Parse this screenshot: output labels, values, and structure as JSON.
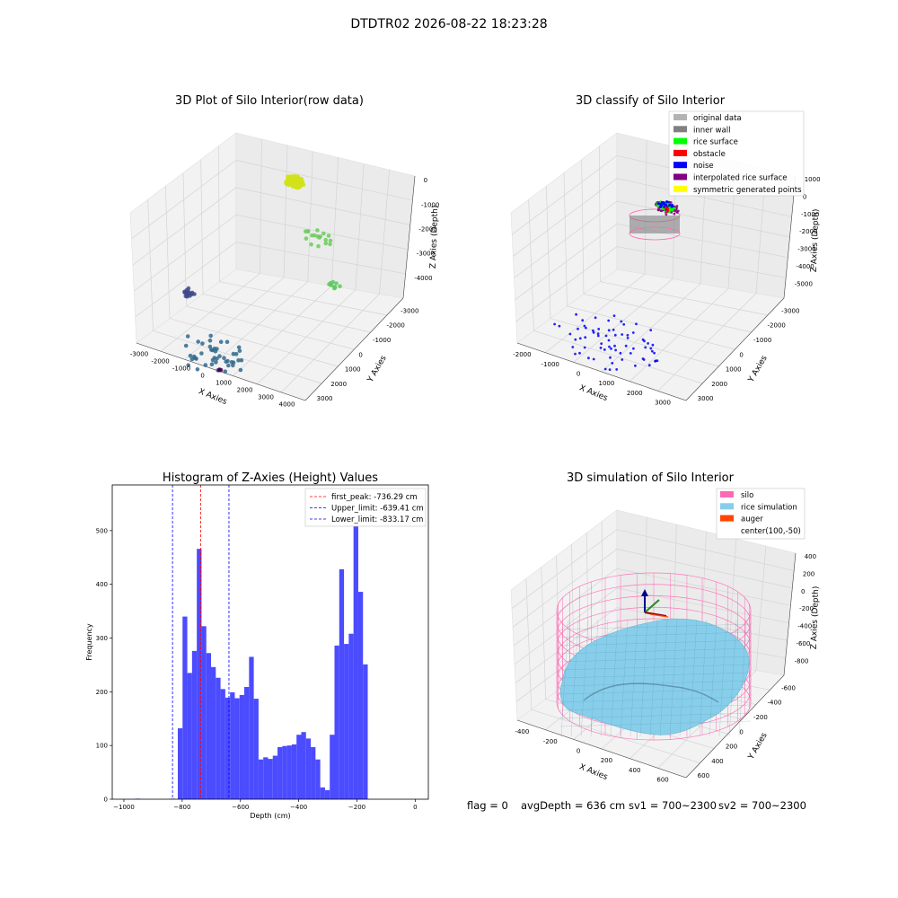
{
  "figure": {
    "suptitle": "DTDTR02 2026-08-22 18:23:28",
    "status": {
      "flag": "flag = 0",
      "avg_depth": "avgDepth = 636 cm",
      "sv1": "sv1 = 700~2300",
      "sv2": "sv2 = 700~2300"
    }
  },
  "colors": {
    "hist_bar": "#4b4bff",
    "first_peak": "#ff0000",
    "limits": "#0000ff",
    "silo": "#ff69b4",
    "rice_simulation": "#87ceeb",
    "auger": "#ff4500",
    "original_data": "#b3b3b3",
    "inner_wall": "#808080",
    "rice_surface": "#00ff00",
    "obstacle": "#ff0000",
    "noise": "#0000ff",
    "interpolated_rice_surface": "#800080",
    "symmetric_generated_points": "#ffff00"
  },
  "chart_data": [
    {
      "type": "scatter",
      "subtype": "3d",
      "title": "3D Plot of Silo Interior(row data)",
      "xlabel": "X Axies",
      "ylabel": "Y Axies",
      "zlabel": "Z Axies (Depth)",
      "xticks": [
        "-3000",
        "-2000",
        "-1000",
        "0",
        "1000",
        "2000",
        "3000",
        "4000"
      ],
      "yticks": [
        "-3000",
        "-2000",
        "-1000",
        "0",
        "1000",
        "2000",
        "3000"
      ],
      "zticks": [
        "0",
        "-1000",
        "-2000",
        "-3000",
        "-4000"
      ],
      "xlim": [
        -3000,
        4000
      ],
      "ylim": [
        -3000,
        3000
      ],
      "zlim": [
        -4500,
        0
      ],
      "colormap": "viridis (by depth)",
      "clusters": [
        {
          "name": "",
          "x": 0,
          "y": 2500,
          "z": -400,
          "spread": 350,
          "n": 140,
          "color": "#d2e21b"
        },
        {
          "name": "",
          "x": 1200,
          "y": 2000,
          "z": -1800,
          "spread": 600,
          "n": 18,
          "color": "#6ccd5a"
        },
        {
          "name": "",
          "x": -2900,
          "y": 0,
          "z": -4000,
          "spread": 250,
          "n": 16,
          "color": "#3e4989"
        },
        {
          "name": "",
          "x": 0,
          "y": -2600,
          "z": -4300,
          "spread": 1200,
          "n": 45,
          "color": "#31688e"
        },
        {
          "name": "",
          "x": 3200,
          "y": 0,
          "z": -2000,
          "spread": 300,
          "n": 10,
          "color": "#5ec962"
        },
        {
          "name": "",
          "x": 400,
          "y": -2900,
          "z": -4500,
          "spread": 60,
          "n": 3,
          "color": "#440154"
        }
      ],
      "grid": true
    },
    {
      "type": "scatter",
      "subtype": "3d",
      "title": "3D classify of Silo Interior",
      "xlabel": "X Axies",
      "ylabel": "Y Axies",
      "zlabel": "Z Axies (Depth)",
      "xticks": [
        "-2000",
        "-1000",
        "0",
        "1000",
        "2000",
        "3000"
      ],
      "yticks": [
        "-3000",
        "-2000",
        "-1000",
        "0",
        "1000",
        "2000",
        "3000"
      ],
      "zticks": [
        "1000",
        "0",
        "-1000",
        "-2000",
        "-3000",
        "-4000",
        "-5000"
      ],
      "xlim": [
        -2500,
        3500
      ],
      "ylim": [
        -3000,
        3000
      ],
      "zlim": [
        -5000,
        1000
      ],
      "legend": [
        "original data",
        "inner wall",
        "rice surface",
        "obstacle",
        "noise",
        "interpolated rice surface",
        "symmetric generated points"
      ],
      "legend_position": "top-right",
      "clusters": [
        {
          "name": "inner wall",
          "x": -300,
          "y": 2500,
          "z": -800,
          "spread": 350,
          "n": 30,
          "color": "#808080"
        },
        {
          "name": "interpolated rice surface",
          "x": -300,
          "y": 2500,
          "z": -900,
          "spread": 420,
          "n": 60,
          "color": "#800080"
        },
        {
          "name": "rice surface",
          "x": -300,
          "y": 2500,
          "z": -850,
          "spread": 300,
          "n": 60,
          "color": "#00ff00"
        },
        {
          "name": "noise",
          "x": 0,
          "y": -1800,
          "z": -4500,
          "spread": 1800,
          "n": 70,
          "color": "#0000ff"
        },
        {
          "name": "noise",
          "x": -300,
          "y": 2500,
          "z": -800,
          "spread": 280,
          "n": 35,
          "color": "#0000ff"
        },
        {
          "name": "obstacle",
          "x": -200,
          "y": 2400,
          "z": -900,
          "spread": 150,
          "n": 6,
          "color": "#ff0000"
        }
      ],
      "grid": true
    },
    {
      "type": "bar",
      "subtype": "histogram",
      "title": "Histogram of Z-Axies (Height) Values",
      "xlabel": "Depth (cm)",
      "ylabel": "Frequency",
      "xlim": [
        -1000,
        0
      ],
      "ylim": [
        0,
        585
      ],
      "xticks": [
        -1000,
        -800,
        -600,
        -400,
        -200,
        0
      ],
      "yticks": [
        0,
        100,
        200,
        300,
        400,
        500
      ],
      "bin_start": -815,
      "bin_width": 16.3,
      "values": [
        132,
        340,
        235,
        276,
        466,
        322,
        272,
        246,
        226,
        205,
        189,
        199,
        188,
        194,
        209,
        265,
        187,
        74,
        78,
        75,
        81,
        97,
        99,
        100,
        102,
        120,
        125,
        113,
        97,
        74,
        22,
        17,
        120,
        286,
        428,
        289,
        308,
        555,
        386,
        251
      ],
      "outliers": [
        {
          "x": -960,
          "value": 1
        },
        {
          "x": -840,
          "value": 1
        }
      ],
      "lines": [
        {
          "label": "first_peak: -736.29 cm",
          "x": -736.29,
          "style": "dashed",
          "color": "#ff0000"
        },
        {
          "label": "Upper_limit: -639.41 cm",
          "x": -639.41,
          "style": "dashed",
          "color": "#0000ff"
        },
        {
          "label": "Lower_limit: -833.17 cm",
          "x": -833.17,
          "style": "dashed",
          "color": "#0000ff"
        }
      ],
      "legend_position": "top-right",
      "grid": false
    },
    {
      "type": "area",
      "subtype": "3d-surface",
      "title": "3D simulation of Silo Interior",
      "xlabel": "X Axies",
      "ylabel": "Y Axies",
      "zlabel": "Z Axies (Depth)",
      "xticks": [
        "-400",
        "-200",
        "0",
        "200",
        "400",
        "600"
      ],
      "yticks": [
        "-600",
        "-400",
        "-200",
        "0",
        "200",
        "400",
        "600"
      ],
      "zticks": [
        "400",
        "200",
        "0",
        "-200",
        "-400",
        "-600",
        "-800"
      ],
      "xlim": [
        -500,
        700
      ],
      "ylim": [
        -700,
        700
      ],
      "zlim": [
        -900,
        500
      ],
      "legend": [
        "silo",
        "rice simulation",
        "auger",
        "center(100,-50)"
      ],
      "legend_position": "top-right",
      "silo": {
        "center": [
          100,
          -50
        ],
        "radius": 600,
        "z_top": 0,
        "z_bottom": -800
      },
      "grid": true
    }
  ]
}
